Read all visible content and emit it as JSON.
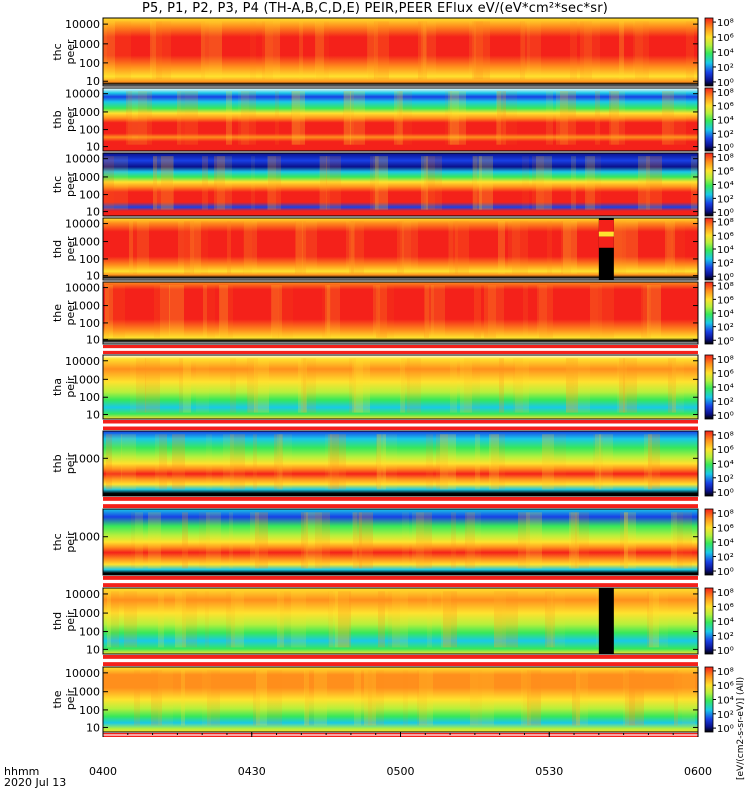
{
  "title": "P5, P1, P2, P3, P4 (TH-A,B,C,D,E) PEIR,PEER EFlux eV/(eV*cm²*sec*sr)",
  "time_label": "hhmm",
  "date_label": "2020 Jul 13",
  "colorbar_label": "[eV/(cm2-s-sr-eV)] (All)",
  "colors": {
    "red": "#f4211a",
    "orange": "#ff8f1c",
    "yellow": "#ffe22e",
    "yellowgreen": "#b6f03c",
    "green": "#37e85a",
    "cyan": "#19c9e8",
    "blue": "#1840e6",
    "darkblue": "#0a108a",
    "black": "#000000",
    "white": "#ffffff"
  },
  "chart_data": {
    "type": "heatmap",
    "x_tick_labels": [
      "0400",
      "0430",
      "0500",
      "0530",
      "0600"
    ],
    "x_range": [
      "0400",
      "0600"
    ],
    "colorbar_ticks": [
      "10⁸",
      "10⁶",
      "10⁴",
      "10²",
      "10⁰"
    ],
    "panels": [
      {
        "label": "thc peer",
        "probe": "thc",
        "product": "peer",
        "y_ticks": [
          "10000",
          "1000",
          "100",
          "10"
        ],
        "dominant": "red",
        "gap_flag": false
      },
      {
        "label": "thb peer",
        "probe": "thb",
        "product": "peer",
        "y_ticks": [
          "10000",
          "1000",
          "100",
          "10"
        ],
        "dominant": "red-band",
        "gap_flag": false
      },
      {
        "label": "thc peer",
        "probe": "thc",
        "product": "peer",
        "y_ticks": [
          "10000",
          "1000",
          "100",
          "10"
        ],
        "dominant": "red-band",
        "gap_flag": false
      },
      {
        "label": "thd peer",
        "probe": "thd",
        "product": "peer",
        "y_ticks": [
          "10000",
          "1000",
          "100",
          "10"
        ],
        "dominant": "red",
        "gap_flag": true
      },
      {
        "label": "the peer",
        "probe": "the",
        "product": "peer",
        "y_ticks": [
          "10000",
          "1000",
          "100",
          "10"
        ],
        "dominant": "red",
        "gap_flag": false
      },
      {
        "label": "tha peir",
        "probe": "tha",
        "product": "peir",
        "y_ticks": [
          "10000",
          "1000",
          "100",
          "10"
        ],
        "dominant": "yellow",
        "gap_flag": false
      },
      {
        "label": "thb peir",
        "probe": "thb",
        "product": "peir",
        "y_ticks": [
          "1000"
        ],
        "dominant": "green-band",
        "gap_flag": false
      },
      {
        "label": "thc peir",
        "probe": "thc",
        "product": "peir",
        "y_ticks": [
          "1000"
        ],
        "dominant": "green-band",
        "gap_flag": false
      },
      {
        "label": "thd peir",
        "probe": "thd",
        "product": "peir",
        "y_ticks": [
          "10000",
          "1000",
          "100",
          "10"
        ],
        "dominant": "yellow",
        "gap_flag": true
      },
      {
        "label": "the peir",
        "probe": "the",
        "product": "peir",
        "y_ticks": [
          "10000",
          "1000",
          "100",
          "10"
        ],
        "dominant": "yellow",
        "gap_flag": false
      }
    ]
  }
}
